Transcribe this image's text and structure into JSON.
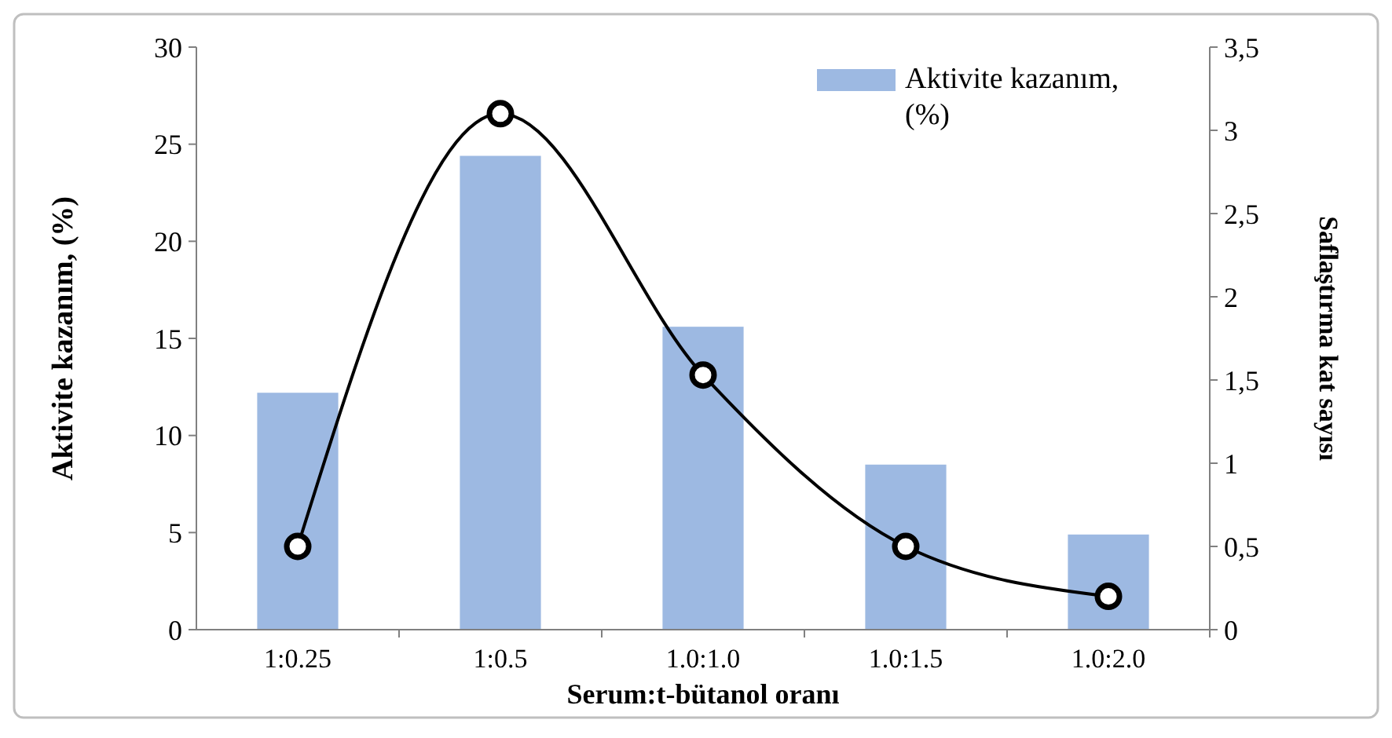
{
  "chart_data": {
    "type": "bar",
    "xlabel": "Serum:t-bütanol oranı",
    "ylabel": "Aktivite kazanım, (%)",
    "y2label": "Saflaştırma kat sayısı",
    "categories": [
      "1:0.25",
      "1:0.5",
      "1.0:1.0",
      "1.0:1.5",
      "1.0:2.0"
    ],
    "series": [
      {
        "name": "Aktivite kazanım, (%)",
        "color": "#9db9e2",
        "values": [
          12.2,
          24.4,
          15.6,
          8.5,
          4.9
        ]
      },
      {
        "type": "line",
        "axis": "y2",
        "color": "#000000",
        "marker": "circle",
        "values": [
          0.5,
          3.1,
          1.53,
          0.5,
          0.2
        ]
      }
    ],
    "ylim": [
      0,
      30
    ],
    "yticks": [
      0,
      5,
      10,
      15,
      20,
      25,
      30
    ],
    "y2lim": [
      0,
      3.5
    ],
    "y2ticks": [
      0,
      {
        "value": 0.5,
        "label": "0,5"
      },
      1,
      {
        "value": 1.5,
        "label": "1,5"
      },
      2,
      {
        "value": 2.5,
        "label": "2,5"
      },
      3,
      {
        "value": 3.5,
        "label": "3,5"
      }
    ],
    "legend": "top right"
  }
}
